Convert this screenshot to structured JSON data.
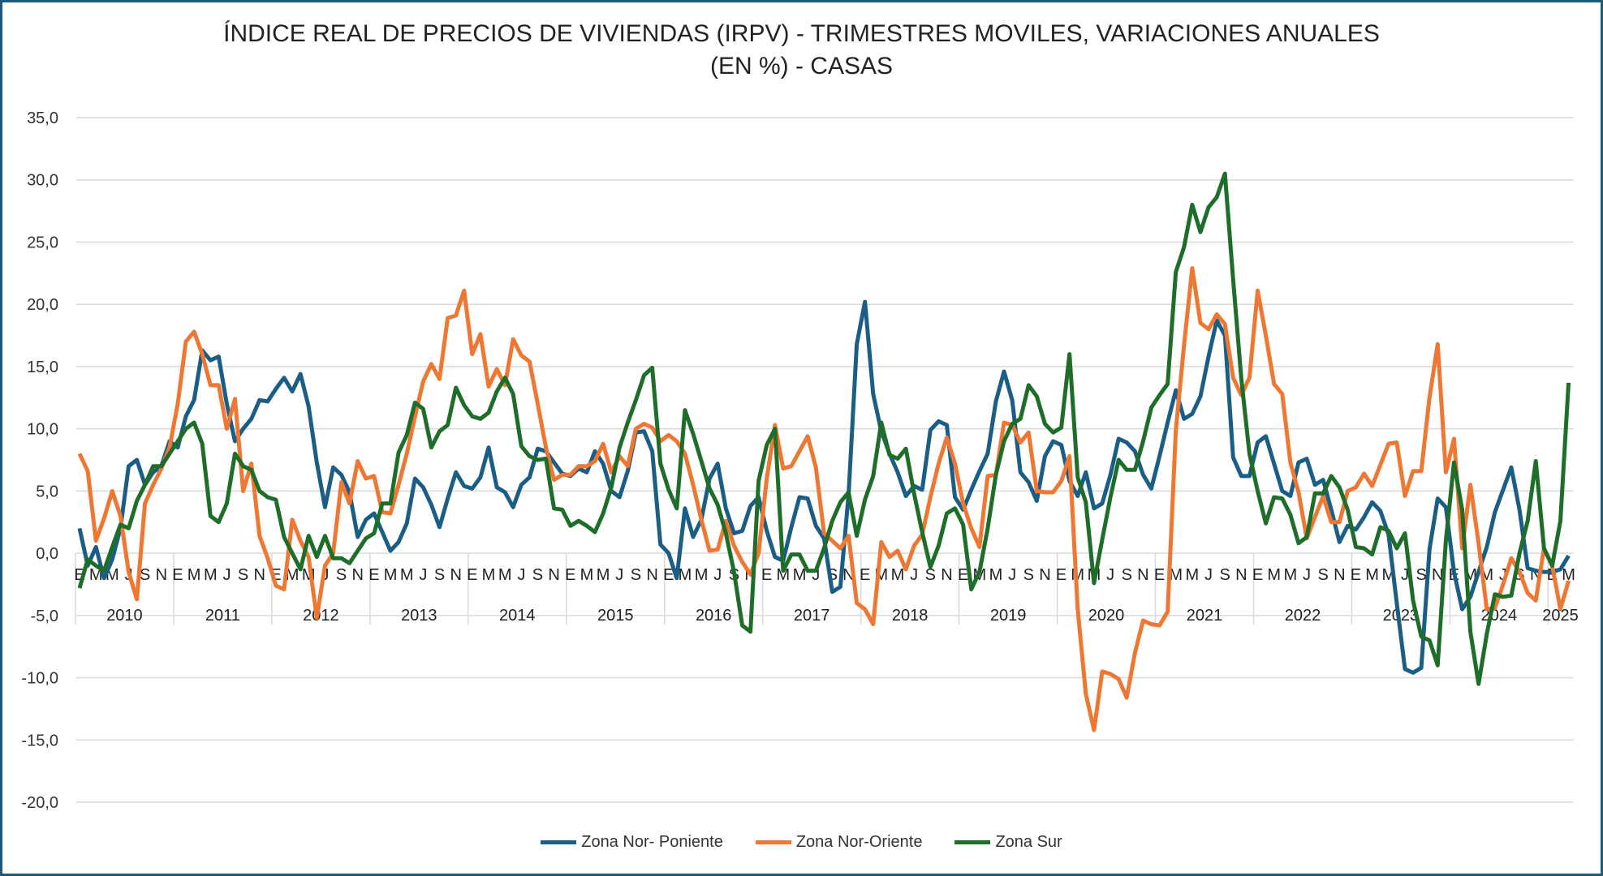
{
  "chart_data": {
    "type": "line",
    "title": "ÍNDICE REAL DE PRECIOS DE VIVIENDAS (IRPV) - TRIMESTRES MOVILES,  VARIACIONES ANUALES",
    "subtitle": "(EN %) - CASAS",
    "xlabel": "",
    "ylabel": "",
    "ylim": [
      -20,
      35
    ],
    "y_ticks": [
      "35,0",
      "30,0",
      "25,0",
      "20,0",
      "15,0",
      "10,0",
      "5,0",
      "0,0",
      "-5,0",
      "-10,0",
      "-15,0",
      "-20,0"
    ],
    "grid": true,
    "legend_position": "bottom",
    "x_start": "2010-01",
    "x_end": "2025-03",
    "month_tick_labels": [
      "E",
      "M",
      "M",
      "J",
      "S",
      "N"
    ],
    "years": [
      "2010",
      "2011",
      "2012",
      "2013",
      "2014",
      "2015",
      "2016",
      "2017",
      "2018",
      "2019",
      "2020",
      "2021",
      "2022",
      "2023",
      "2024",
      "2025"
    ],
    "series": [
      {
        "name": "Zona Nor- Poniente",
        "color": "#1b5e85",
        "values": [
          2,
          -1,
          0.5,
          -2,
          -0.5,
          2,
          7,
          7.5,
          5.5,
          6.5,
          7,
          9,
          8.5,
          11,
          12.3,
          16.3,
          15.5,
          15.8,
          12,
          9,
          10,
          10.8,
          12.3,
          12.2,
          13.2,
          14.1,
          13,
          14.4,
          11.8,
          7.3,
          3.7,
          6.9,
          6.3,
          4.9,
          1.3,
          2.7,
          3.2,
          1.7,
          0.2,
          0.9,
          2.4,
          6,
          5.3,
          3.9,
          2.1,
          4.4,
          6.5,
          5.4,
          5.2,
          6.1,
          8.5,
          5.3,
          4.9,
          3.7,
          5.5,
          6.1,
          8.4,
          8.2,
          7.3,
          6.4,
          6.2,
          6.8,
          6.5,
          8.2,
          7.2,
          5,
          4.5,
          6.6,
          9.7,
          9.8,
          8.2,
          0.7,
          0,
          -2,
          3.6,
          1.3,
          2.7,
          6,
          7.2,
          3.6,
          1.6,
          1.8,
          3.8,
          4.5,
          1.8,
          -0.3,
          -0.6,
          2.1,
          4.5,
          4.4,
          2.2,
          1.2,
          -3.1,
          -2.7,
          4.7,
          16.8,
          20.2,
          12.8,
          9.8,
          8,
          6.5,
          4.6,
          5.4,
          5.1,
          9.9,
          10.6,
          10.3,
          4.5,
          3.5,
          5.1,
          6.6,
          8,
          12.2,
          14.6,
          12.3,
          6.5,
          5.7,
          4.2,
          7.8,
          9,
          8.7,
          5.8,
          4.6,
          6.5,
          3.6,
          4,
          6.3,
          9.2,
          8.9,
          8.2,
          6.3,
          5.2,
          7.8,
          10.5,
          13.1,
          10.8,
          11.2,
          12.6,
          15.8,
          18.7,
          17.5,
          7.7,
          6.2,
          6.2,
          8.9,
          9.4,
          7.2,
          5,
          4.6,
          7.3,
          7.6,
          5.5,
          5.9,
          3.5,
          0.9,
          2.2,
          1.9,
          2.9,
          4.1,
          3.4,
          1.5,
          -4,
          -9.3,
          -9.6,
          -9.2,
          0.3,
          4.4,
          3.7,
          -1.5,
          -4.5,
          -3.5,
          -1.5,
          0.5,
          3.3,
          5.1,
          6.9,
          3.5,
          -1.2,
          -1.4,
          -1.5,
          -1.5,
          -1.3,
          -0.2
        ]
      },
      {
        "name": "Zona Nor-Oriente",
        "color": "#ee7733",
        "values": [
          8,
          6.6,
          1,
          2.8,
          5,
          3,
          -1.5,
          -3.7,
          4,
          5.5,
          6.8,
          8.5,
          12,
          17,
          17.8,
          16,
          13.5,
          13.5,
          10,
          12.4,
          5,
          7.2,
          1.4,
          -0.4,
          -2.6,
          -2.9,
          2.7,
          1,
          -0.3,
          -5.2,
          -1,
          0,
          5.7,
          4,
          7.4,
          6,
          6.2,
          3.3,
          3.2,
          5.5,
          8,
          11,
          13.8,
          15.2,
          14,
          18.9,
          19.1,
          21.1,
          16,
          17.6,
          13.4,
          14.8,
          13.5,
          17.2,
          15.9,
          15.4,
          12,
          8.5,
          5.9,
          6.3,
          6.3,
          7,
          7,
          7.4,
          8.8,
          6.5,
          7.8,
          7,
          10,
          10.4,
          10.1,
          9,
          9.5,
          9,
          8,
          5.5,
          2.7,
          0.2,
          0.3,
          2.6,
          0.6,
          -0.7,
          -1.7,
          0,
          6,
          10.3,
          6.8,
          7,
          8.2,
          9.4,
          6.9,
          1.6,
          1,
          0.4,
          1.4,
          -4,
          -4.5,
          -5.7,
          0.9,
          -0.3,
          0.2,
          -1.3,
          0.6,
          1.5,
          4.5,
          7.2,
          9.3,
          7.2,
          4,
          2,
          0.5,
          6.2,
          6.3,
          10.5,
          10.3,
          8.9,
          9.7,
          5,
          4.9,
          4.9,
          5.8,
          7.8,
          -4.5,
          -11.3,
          -14.2,
          -9.5,
          -9.7,
          -10.1,
          -11.6,
          -8,
          -5.4,
          -5.7,
          -5.8,
          -4.7,
          9.9,
          16.7,
          22.9,
          18.5,
          18,
          19.2,
          18.4,
          14.1,
          12.7,
          14.1,
          21.1,
          17.5,
          13.6,
          12.8,
          7.3,
          4.9,
          1.2,
          2.9,
          4.6,
          2.5,
          2.5,
          5,
          5.3,
          6.4,
          5.4,
          7.1,
          8.8,
          8.9,
          4.6,
          6.6,
          6.6,
          12.5,
          16.8,
          6.5,
          9.2,
          0.4,
          5.5,
          0.8,
          -4.5,
          -4.4,
          -2.5,
          -0.4,
          -1.5,
          -3.2,
          -3.8,
          0.4,
          -1,
          -4.5,
          -2.2
        ]
      },
      {
        "name": "Zona Sur",
        "color": "#1e6e2a",
        "values": [
          -2.8,
          -0.5,
          -1,
          -1.4,
          0.5,
          2.3,
          2,
          4.2,
          5.5,
          7,
          7,
          8,
          9,
          10,
          10.5,
          8.8,
          3,
          2.5,
          4,
          8,
          7,
          6.7,
          5,
          4.5,
          4.3,
          1.3,
          0,
          -1.3,
          1.4,
          -0.3,
          1.4,
          -0.4,
          -0.4,
          -0.8,
          0.2,
          1.2,
          1.6,
          4,
          4,
          8.1,
          9.5,
          12.1,
          11.6,
          8.5,
          9.8,
          10.3,
          13.3,
          11.9,
          11,
          10.8,
          11.3,
          13,
          14.1,
          12.8,
          8.6,
          7.8,
          7.5,
          7.6,
          3.6,
          3.5,
          2.2,
          2.6,
          2.2,
          1.7,
          3.2,
          5.3,
          8.5,
          10.5,
          12.3,
          14.3,
          14.9,
          7.2,
          5.1,
          3.6,
          11.5,
          9.6,
          7.4,
          5.2,
          3.9,
          1.6,
          -1.5,
          -5.8,
          -6.3,
          5.8,
          8.7,
          10,
          -1.4,
          -0.1,
          -0.1,
          -1.4,
          -1.4,
          0.4,
          2.6,
          4.1,
          4.9,
          1.4,
          4.3,
          6.2,
          10.5,
          7.9,
          7.6,
          8.4,
          4.8,
          1.7,
          -1.1,
          0.6,
          3.2,
          3.6,
          2.3,
          -2.9,
          -1.5,
          2,
          6.3,
          9,
          10.4,
          10.8,
          13.5,
          12.6,
          10.4,
          9.7,
          10.1,
          16,
          6.1,
          4.1,
          -2.4,
          1.1,
          4.5,
          7.5,
          6.7,
          6.7,
          9,
          11.7,
          12.7,
          13.6,
          22.6,
          24.6,
          28,
          25.8,
          27.8,
          28.6,
          30.5,
          22,
          14,
          8,
          5,
          2.4,
          4.5,
          4.4,
          3.1,
          0.8,
          1.3,
          4.8,
          4.8,
          6.2,
          5.3,
          3.5,
          0.5,
          0.4,
          -0.1,
          2.1,
          1.8,
          0.4,
          1.6,
          -3.8,
          -6.7,
          -7,
          -9,
          1,
          7.3,
          3.5,
          -6.3,
          -10.5,
          -6.5,
          -3.3,
          -3.5,
          -3.4,
          0,
          2.6,
          7.4,
          0.4,
          -1,
          2.6,
          13.7
        ]
      }
    ]
  }
}
